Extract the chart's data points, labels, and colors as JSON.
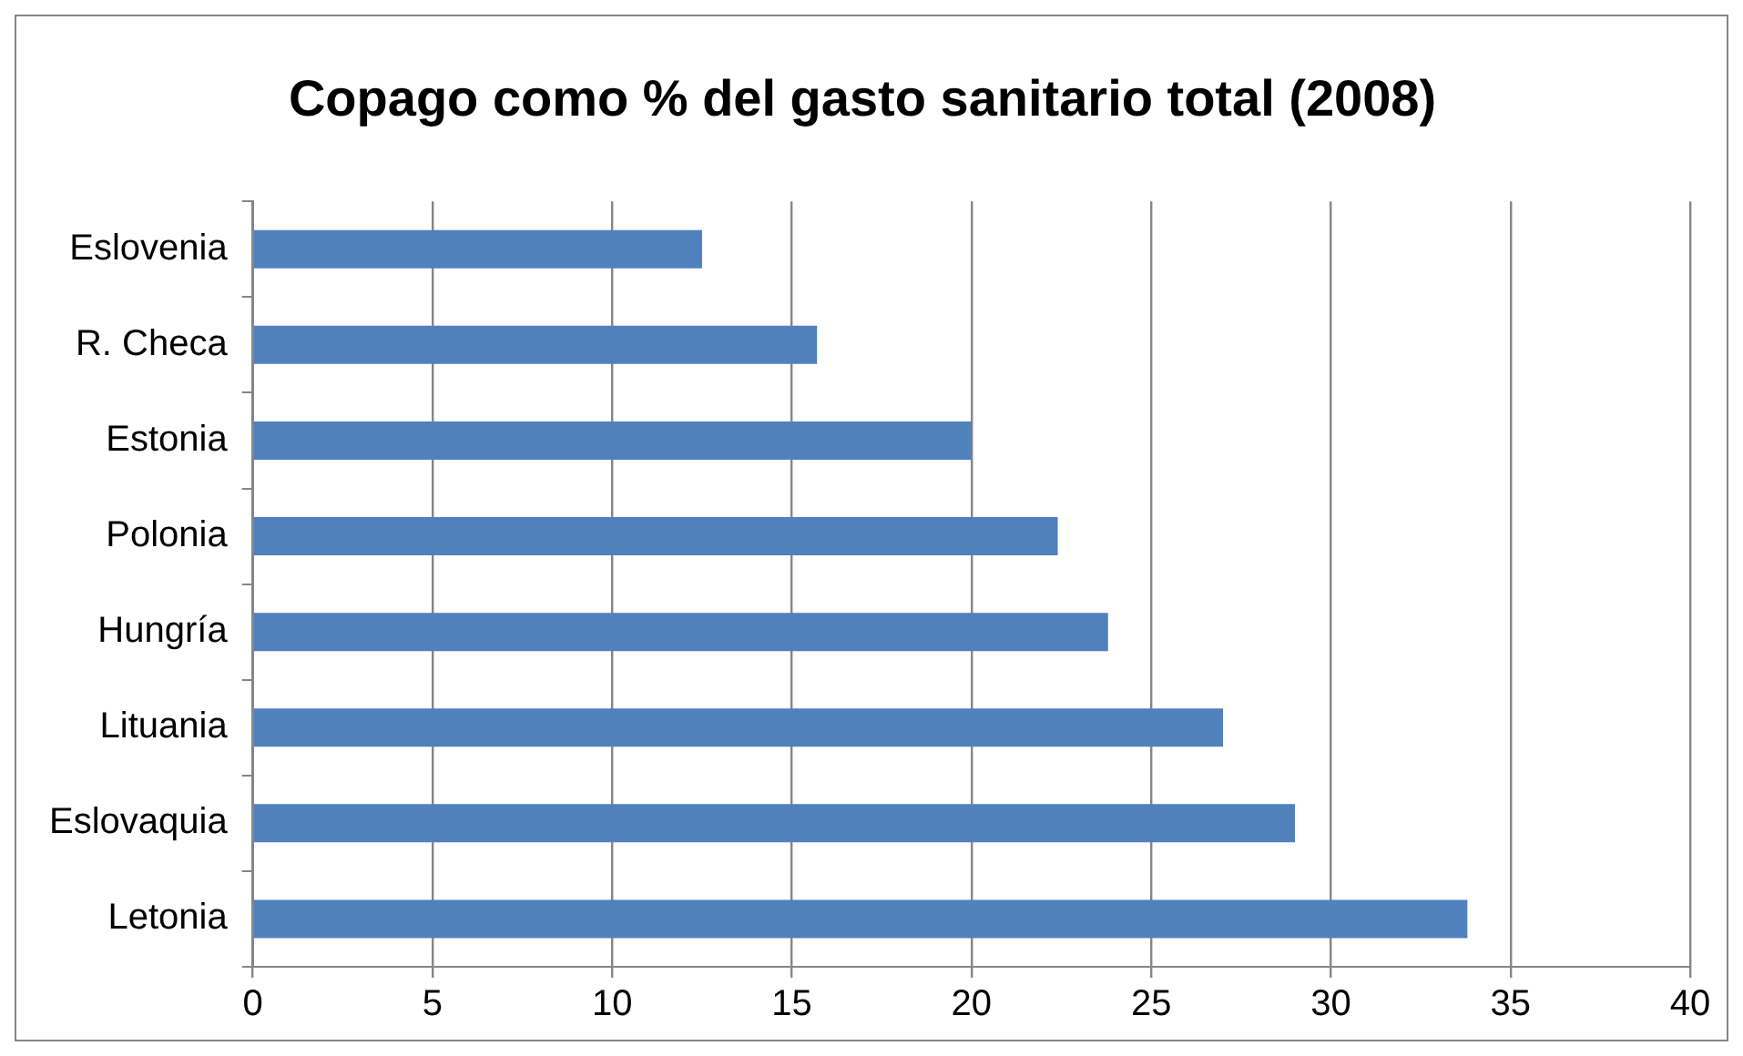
{
  "chart_data": {
    "type": "bar",
    "orientation": "horizontal",
    "title": "Copago como % del gasto sanitario total (2008)",
    "categories": [
      "Eslovenia",
      "R. Checa",
      "Estonia",
      "Polonia",
      "Hungría",
      "Lituania",
      "Eslovaquia",
      "Letonia"
    ],
    "values": [
      12.5,
      15.7,
      20.0,
      22.4,
      23.8,
      27.0,
      29.0,
      33.8
    ],
    "color": "#4f81bd",
    "xlim": [
      0,
      40
    ],
    "xticks": [
      0,
      5,
      10,
      15,
      20,
      25,
      30,
      35,
      40
    ],
    "grid": "x",
    "legend": false
  }
}
